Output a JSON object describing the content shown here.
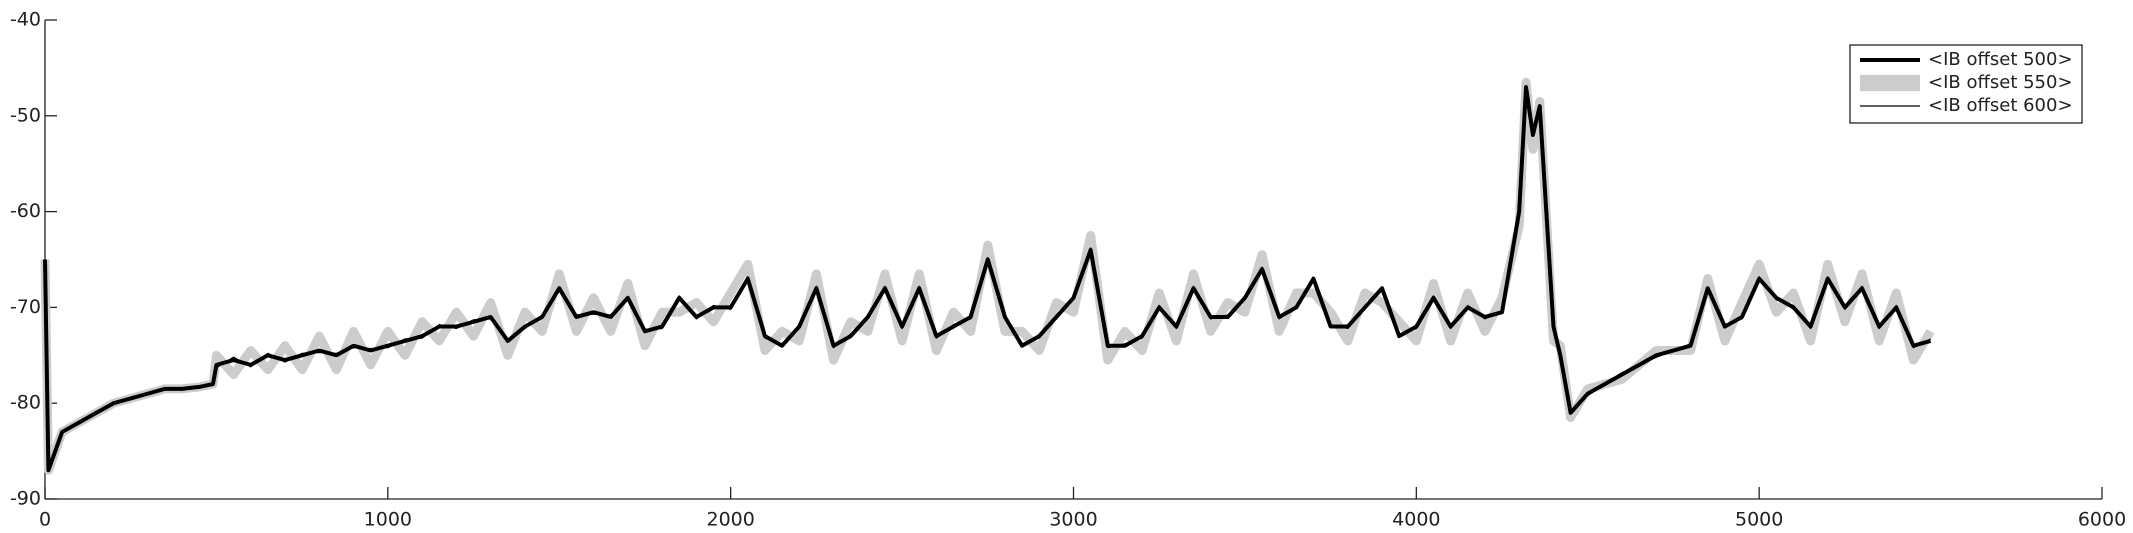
{
  "chart_data": {
    "type": "line",
    "x": [
      0,
      10,
      50,
      100,
      150,
      200,
      250,
      300,
      350,
      400,
      450,
      490,
      500,
      550,
      600,
      650,
      700,
      750,
      800,
      850,
      900,
      950,
      1000,
      1050,
      1100,
      1150,
      1200,
      1250,
      1300,
      1350,
      1400,
      1450,
      1500,
      1550,
      1600,
      1650,
      1700,
      1750,
      1800,
      1850,
      1900,
      1950,
      2000,
      2050,
      2100,
      2150,
      2200,
      2250,
      2300,
      2350,
      2400,
      2450,
      2500,
      2550,
      2600,
      2650,
      2700,
      2750,
      2800,
      2850,
      2900,
      2950,
      3000,
      3050,
      3100,
      3150,
      3200,
      3250,
      3300,
      3350,
      3400,
      3450,
      3500,
      3550,
      3600,
      3650,
      3700,
      3750,
      3800,
      3850,
      3900,
      3950,
      4000,
      4050,
      4100,
      4150,
      4200,
      4250,
      4300,
      4320,
      4340,
      4360,
      4400,
      4420,
      4450,
      4500,
      4600,
      4700,
      4800,
      4850,
      4900,
      4950,
      5000,
      5050,
      5100,
      5150,
      5200,
      5250,
      5300,
      5350,
      5400,
      5450,
      5500
    ],
    "series": [
      {
        "name": "<IB offset 500>",
        "color": "#000000",
        "values": [
          -65,
          -87,
          -83,
          -82,
          -81,
          -80,
          -79.5,
          -79,
          -78.5,
          -78.5,
          -78.3,
          -78,
          -76,
          -75.5,
          -76,
          -75,
          -75.5,
          -75,
          -74.5,
          -75,
          -74,
          -74.5,
          -74,
          -73.5,
          -73,
          -72,
          -72,
          -71.5,
          -71,
          -73.5,
          -72,
          -71,
          -68,
          -71,
          -70.5,
          -71,
          -69,
          -72.5,
          -72,
          -69,
          -71,
          -70,
          -70,
          -67,
          -73,
          -74,
          -72,
          -68,
          -74,
          -73,
          -71,
          -68,
          -72,
          -68,
          -73,
          -72,
          -71,
          -65,
          -71,
          -74,
          -73,
          -71,
          -69,
          -64,
          -74,
          -74,
          -73,
          -70,
          -72,
          -68,
          -71,
          -71,
          -69,
          -66,
          -71,
          -70,
          -67,
          -72,
          -72,
          -70,
          -68,
          -73,
          -72,
          -69,
          -72,
          -70,
          -71,
          -70.5,
          -60,
          -47,
          -52,
          -49,
          -72,
          -75,
          -81,
          -79,
          -77,
          -75,
          -74,
          -68,
          -72,
          -71,
          -67,
          -69,
          -70,
          -72,
          -67,
          -70,
          -68,
          -72,
          -70,
          -74,
          -73.5
        ]
      },
      {
        "name": "<IB offset 550>",
        "color": "#cccccc",
        "values": [
          -65,
          -87,
          -83,
          -82,
          -81,
          -80,
          -79.5,
          -79,
          -78.5,
          -78.5,
          -78.3,
          -78,
          -75,
          -77,
          -74.5,
          -76.5,
          -74,
          -76.5,
          -73,
          -76.5,
          -72.5,
          -76,
          -72.5,
          -75,
          -71.5,
          -73.5,
          -70.5,
          -73,
          -69.5,
          -75,
          -70.5,
          -72.5,
          -66.5,
          -72.5,
          -69,
          -72.5,
          -67.5,
          -74,
          -70.5,
          -70.5,
          -69.5,
          -71.5,
          -68.5,
          -65.5,
          -74.5,
          -72.5,
          -73.5,
          -66.5,
          -75.5,
          -71.5,
          -72.5,
          -66.5,
          -73.5,
          -66.5,
          -74.5,
          -70.5,
          -72.5,
          -63.5,
          -72.5,
          -72.5,
          -74.5,
          -69.5,
          -70.5,
          -62.5,
          -75.5,
          -72.5,
          -74.5,
          -68.5,
          -73.5,
          -66.5,
          -72.5,
          -69.5,
          -70.5,
          -64.5,
          -72.5,
          -68.5,
          -68.5,
          -70.5,
          -73.5,
          -68.5,
          -69.5,
          -71.5,
          -73.5,
          -67.5,
          -73.5,
          -68.5,
          -72.5,
          -69,
          -61.5,
          -46.5,
          -53.5,
          -48.5,
          -73.5,
          -74,
          -81.5,
          -78.5,
          -77.5,
          -74.5,
          -74.5,
          -67,
          -73.5,
          -69.5,
          -65.5,
          -70.5,
          -68.5,
          -73.5,
          -65.5,
          -71.5,
          -66.5,
          -73.5,
          -68.5,
          -75.5,
          -72.5
        ]
      },
      {
        "name": "<IB offset 600>",
        "color": "#000000",
        "values": [
          -65,
          -87,
          -83,
          -82,
          -81,
          -80,
          -79.5,
          -79,
          -78.5,
          -78.5,
          -78.3,
          -78,
          -76.3,
          -75.2,
          -76.2,
          -74.8,
          -75.7,
          -74.8,
          -74.7,
          -74.8,
          -74.2,
          -74.3,
          -74.2,
          -73.3,
          -73.2,
          -71.8,
          -72.2,
          -71.3,
          -71.2,
          -73.3,
          -72.2,
          -70.8,
          -68.3,
          -70.8,
          -70.7,
          -70.8,
          -69.2,
          -72.3,
          -72.2,
          -68.8,
          -71.2,
          -69.8,
          -70.2,
          -66.8,
          -73.2,
          -73.8,
          -72.2,
          -67.8,
          -74.2,
          -72.8,
          -71.2,
          -67.8,
          -72.2,
          -67.8,
          -73.2,
          -71.8,
          -71.2,
          -64.8,
          -71.2,
          -73.8,
          -73.2,
          -70.8,
          -69.2,
          -63.8,
          -74.2,
          -73.8,
          -73.2,
          -69.8,
          -72.2,
          -67.8,
          -71.2,
          -70.8,
          -69.2,
          -65.8,
          -71.2,
          -69.8,
          -67.2,
          -71.8,
          -72.2,
          -69.8,
          -68.2,
          -72.8,
          -72.2,
          -68.8,
          -72.2,
          -69.8,
          -71.2,
          -70.3,
          -60.2,
          -47.2,
          -51.8,
          -49.2,
          -71.8,
          -75.2,
          -80.8,
          -79.2,
          -76.8,
          -75.2,
          -73.8,
          -68.2,
          -71.8,
          -71.2,
          -66.8,
          -69.2,
          -69.8,
          -72.2,
          -66.8,
          -70.2,
          -67.8,
          -72.2,
          -69.8,
          -74.2,
          -73.3
        ]
      }
    ],
    "xlim": [
      0,
      6000
    ],
    "xticks": [
      0,
      1000,
      2000,
      3000,
      4000,
      5000,
      6000
    ],
    "ylim": [
      -90,
      -40
    ],
    "yticks": [
      -90,
      -80,
      -70,
      -60,
      -50,
      -40
    ],
    "legend": "upper right"
  }
}
